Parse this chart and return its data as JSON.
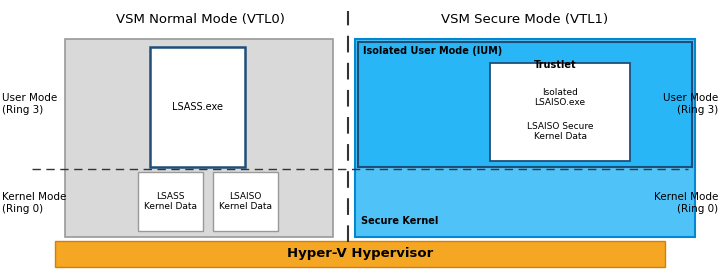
{
  "bg_color": "#ffffff",
  "title_normal": "VSM Normal Mode (VTL0)",
  "title_secure": "VSM Secure Mode (VTL1)",
  "hypervisor_label": "Hyper-V Hypervisor",
  "hypervisor_color": "#f5a623",
  "hypervisor_edge": "#d48000",
  "normal_box_color": "#d9d9d9",
  "normal_box_edge": "#999999",
  "secure_box_color": "#4fc3f7",
  "secure_box_edge": "#0288d1",
  "ium_label": "Isolated User Mode (IUM)",
  "trustlet_label": "Trustlet",
  "secure_kernel_label": "Secure Kernel",
  "lsass_box_color": "#ffffff",
  "lsass_box_edge": "#1f4e79",
  "lsass_label": "LSASS.exe",
  "lsass_kernel_label": "LSASS\nKernel Data",
  "lsaiso_kernel_label": "LSAISO\nKernel Data",
  "isolated_lsaiso_label": "Isolated\nLSAISO.exe",
  "lsaiso_secure_label": "LSAISO Secure\nKernel Data",
  "user_mode_left_label": "User Mode\n(Ring 3)",
  "kernel_mode_left_label": "Kernel Mode\n(Ring 0)",
  "user_mode_right_label": "User Mode\n(Ring 3)",
  "kernel_mode_right_label": "Kernel Mode\n(Ring 0)",
  "dashed_line_color": "#333333",
  "divider_line_color": "#333333",
  "font_color": "#000000",
  "title_fontsize": 9.5,
  "label_fontsize": 7.5,
  "small_fontsize": 7.0,
  "tiny_fontsize": 6.5
}
